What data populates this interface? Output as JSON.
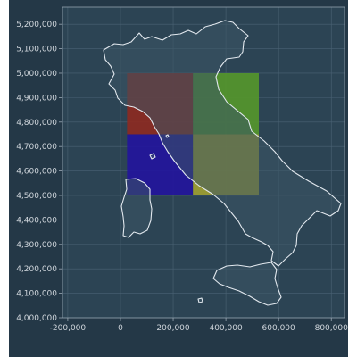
{
  "colors": {
    "page_background": "#ffffff",
    "figure_background": "#243847",
    "axes_background": "#2c4454",
    "grid": "#4a6274",
    "tick_label": "#d0d6dc",
    "coastline": "#e2e8ee",
    "land_fill": "#3c5664"
  },
  "chart_data": {
    "type": "map",
    "title": "",
    "xlabel": "",
    "ylabel": "",
    "xlim": [
      -220000,
      850000
    ],
    "ylim": [
      4000000,
      5270000
    ],
    "xticks": [
      -200000,
      0,
      200000,
      400000,
      600000,
      800000
    ],
    "xtick_labels": [
      "-200,000",
      "0",
      "200,000",
      "400,000",
      "600,000",
      "800,000"
    ],
    "yticks": [
      4000000,
      4100000,
      4200000,
      4300000,
      4400000,
      4500000,
      4600000,
      4700000,
      4800000,
      4900000,
      5000000,
      5100000,
      5200000
    ],
    "ytick_labels": [
      "4,000,000",
      "4,100,000",
      "4,200,000",
      "4,300,000",
      "4,400,000",
      "4,500,000",
      "4,600,000",
      "4,700,000",
      "4,800,000",
      "4,900,000",
      "5,000,000",
      "5,100,000",
      "5,200,000"
    ],
    "grid": true,
    "basemap": "Italy coastline outline",
    "raster_cells": [
      {
        "x": [
          25000,
          275000
        ],
        "y": [
          4750000,
          5000000
        ],
        "color": "#8c2a22"
      },
      {
        "x": [
          275000,
          525000
        ],
        "y": [
          4750000,
          5000000
        ],
        "color": "#55962c"
      },
      {
        "x": [
          25000,
          275000
        ],
        "y": [
          4500000,
          4750000
        ],
        "color": "#23159c"
      },
      {
        "x": [
          275000,
          525000
        ],
        "y": [
          4500000,
          4750000
        ],
        "color": "#9e9e32"
      }
    ]
  }
}
